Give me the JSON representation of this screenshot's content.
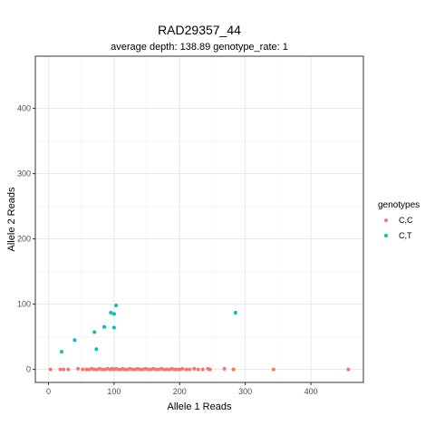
{
  "chart_data": {
    "type": "scatter",
    "title": "RAD29357_44",
    "subtitle": "average depth:  138.89  genotype_rate:  1",
    "xlabel": "Allele 1 Reads",
    "ylabel": "Allele 2 Reads",
    "xlim": [
      -20,
      480
    ],
    "ylim": [
      -20,
      480
    ],
    "x_ticks": [
      0,
      100,
      200,
      300,
      400
    ],
    "y_ticks": [
      0,
      100,
      200,
      300,
      400
    ],
    "grid": true,
    "legend": {
      "title": "genotypes",
      "position": "right"
    },
    "series": [
      {
        "name": "C,C",
        "color": "#F8766D",
        "points": [
          [
            3,
            0
          ],
          [
            18,
            0
          ],
          [
            23,
            0
          ],
          [
            30,
            0
          ],
          [
            45,
            1
          ],
          [
            52,
            0
          ],
          [
            58,
            0
          ],
          [
            62,
            0
          ],
          [
            66,
            1
          ],
          [
            70,
            0
          ],
          [
            74,
            0
          ],
          [
            78,
            1
          ],
          [
            82,
            0
          ],
          [
            86,
            0
          ],
          [
            90,
            1
          ],
          [
            94,
            0
          ],
          [
            97,
            1
          ],
          [
            100,
            0
          ],
          [
            103,
            1
          ],
          [
            106,
            0
          ],
          [
            110,
            0
          ],
          [
            113,
            1
          ],
          [
            116,
            0
          ],
          [
            120,
            0
          ],
          [
            124,
            1
          ],
          [
            128,
            0
          ],
          [
            132,
            0
          ],
          [
            136,
            1
          ],
          [
            140,
            0
          ],
          [
            144,
            0
          ],
          [
            148,
            1
          ],
          [
            152,
            0
          ],
          [
            156,
            0
          ],
          [
            160,
            1
          ],
          [
            164,
            0
          ],
          [
            168,
            0
          ],
          [
            172,
            1
          ],
          [
            176,
            0
          ],
          [
            180,
            0
          ],
          [
            184,
            0
          ],
          [
            188,
            1
          ],
          [
            192,
            0
          ],
          [
            196,
            0
          ],
          [
            200,
            0
          ],
          [
            204,
            1
          ],
          [
            210,
            0
          ],
          [
            215,
            0
          ],
          [
            222,
            1
          ],
          [
            228,
            0
          ],
          [
            235,
            0
          ],
          [
            243,
            1
          ],
          [
            246,
            0
          ],
          [
            268,
            1
          ],
          [
            282,
            0
          ],
          [
            343,
            0
          ],
          [
            457,
            0
          ]
        ]
      },
      {
        "name": "C,T",
        "color": "#00BFC4",
        "points": [
          [
            20,
            27
          ],
          [
            40,
            45
          ],
          [
            70,
            57
          ],
          [
            73,
            31
          ],
          [
            85,
            65
          ],
          [
            95,
            87
          ],
          [
            100,
            85
          ],
          [
            100,
            64
          ],
          [
            103,
            98
          ],
          [
            285,
            87
          ]
        ]
      }
    ]
  }
}
